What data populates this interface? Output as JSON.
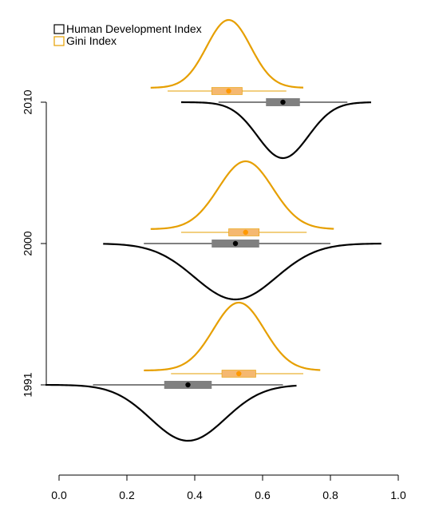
{
  "chart_data": {
    "type": "violin-boxplot",
    "xlim": [
      -0.04,
      1.02
    ],
    "xticks": [
      0.0,
      0.2,
      0.4,
      0.6,
      0.8,
      1.0
    ],
    "xtick_labels": [
      "0.0",
      "0.2",
      "0.4",
      "0.6",
      "0.8",
      "1.0"
    ],
    "categories": [
      "1991",
      "2000",
      "2010"
    ],
    "legend": {
      "position": "top-left",
      "entries": [
        {
          "label": "Human Development Index",
          "color": "#000000"
        },
        {
          "label": "Gini Index",
          "color": "#E69F00"
        }
      ]
    },
    "series": [
      {
        "name": "Human Development Index",
        "color": "#000000",
        "box_color": "#808080",
        "side": "below",
        "groups": [
          {
            "category": "1991",
            "min": 0.1,
            "q1": 0.31,
            "median": 0.38,
            "q3": 0.45,
            "max": 0.66,
            "density_range": [
              -0.04,
              0.7
            ],
            "density_mode": 0.38,
            "density_sd": 0.11
          },
          {
            "category": "2000",
            "min": 0.25,
            "q1": 0.45,
            "median": 0.52,
            "q3": 0.59,
            "max": 0.8,
            "density_range": [
              0.13,
              0.95
            ],
            "density_mode": 0.52,
            "density_sd": 0.12
          },
          {
            "category": "2010",
            "min": 0.47,
            "q1": 0.61,
            "median": 0.66,
            "q3": 0.71,
            "max": 0.85,
            "density_range": [
              0.36,
              0.92
            ],
            "density_mode": 0.66,
            "density_sd": 0.075
          }
        ]
      },
      {
        "name": "Gini Index",
        "color": "#E69F00",
        "box_color": "#F5B870",
        "side": "above",
        "groups": [
          {
            "category": "1991",
            "min": 0.33,
            "q1": 0.48,
            "median": 0.53,
            "q3": 0.58,
            "max": 0.72,
            "density_range": [
              0.25,
              0.77
            ],
            "density_mode": 0.53,
            "density_sd": 0.075
          },
          {
            "category": "2000",
            "min": 0.36,
            "q1": 0.5,
            "median": 0.55,
            "q3": 0.59,
            "max": 0.73,
            "density_range": [
              0.27,
              0.81
            ],
            "density_mode": 0.55,
            "density_sd": 0.08
          },
          {
            "category": "2010",
            "min": 0.32,
            "q1": 0.45,
            "median": 0.5,
            "q3": 0.54,
            "max": 0.67,
            "density_range": [
              0.27,
              0.72
            ],
            "density_mode": 0.5,
            "density_sd": 0.065
          }
        ]
      }
    ]
  }
}
